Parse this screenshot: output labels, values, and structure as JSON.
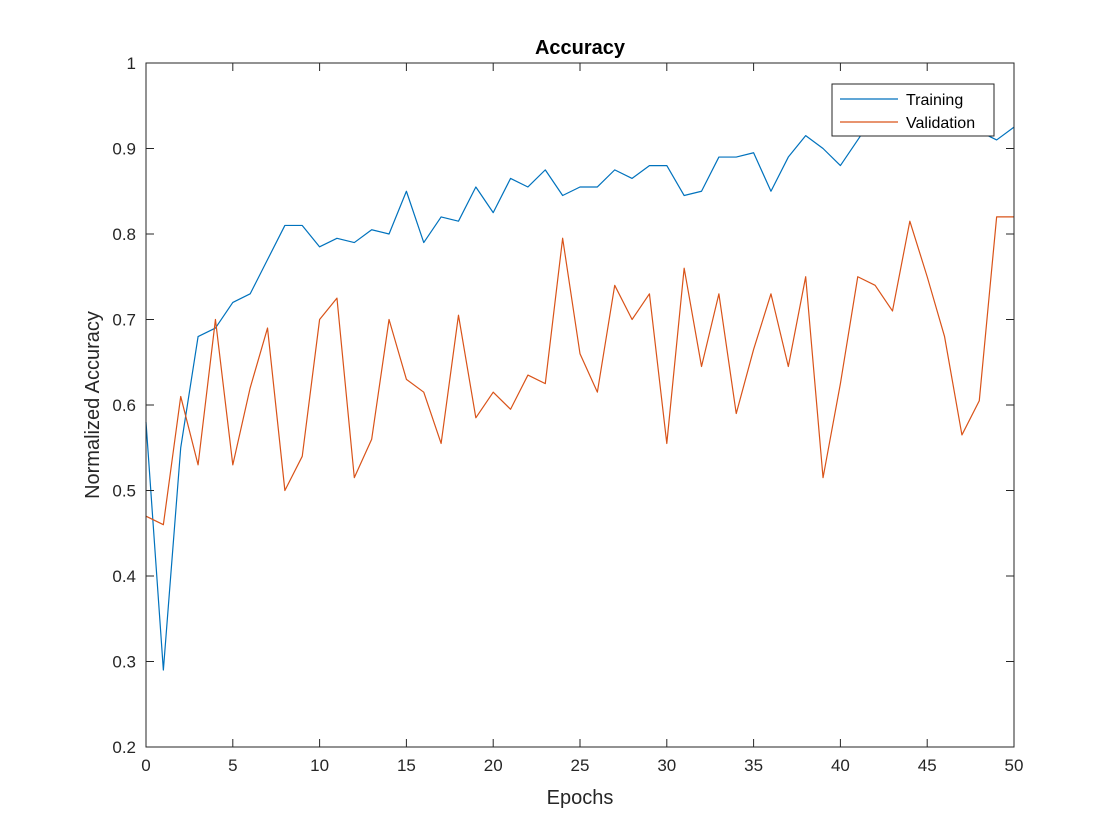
{
  "chart_data": {
    "type": "line",
    "title": "Accuracy",
    "xlabel": "Epochs",
    "ylabel": "Normalized Accuracy",
    "xlim": [
      0,
      50
    ],
    "ylim": [
      0.2,
      1
    ],
    "xticks": [
      0,
      5,
      10,
      15,
      20,
      25,
      30,
      35,
      40,
      45,
      50
    ],
    "yticks": [
      0.2,
      0.3,
      0.4,
      0.5,
      0.6,
      0.7,
      0.8,
      0.9,
      1
    ],
    "ytick_labels": [
      "0.2",
      "0.3",
      "0.4",
      "0.5",
      "0.6",
      "0.7",
      "0.8",
      "0.9",
      "1"
    ],
    "grid": false,
    "legend_position": "top-right",
    "x": [
      0,
      1,
      2,
      3,
      4,
      5,
      6,
      7,
      8,
      9,
      10,
      11,
      12,
      13,
      14,
      15,
      16,
      17,
      18,
      19,
      20,
      21,
      22,
      23,
      24,
      25,
      26,
      27,
      28,
      29,
      30,
      31,
      32,
      33,
      34,
      35,
      36,
      37,
      38,
      39,
      40,
      41,
      42,
      43,
      44,
      45,
      46,
      47,
      48,
      49,
      50
    ],
    "series": [
      {
        "name": "Training",
        "color": "#0072BD",
        "values": [
          0.58,
          0.29,
          0.55,
          0.68,
          0.69,
          0.72,
          0.73,
          0.77,
          0.81,
          0.81,
          0.785,
          0.795,
          0.79,
          0.805,
          0.8,
          0.85,
          0.79,
          0.82,
          0.815,
          0.855,
          0.825,
          0.865,
          0.855,
          0.875,
          0.845,
          0.855,
          0.855,
          0.875,
          0.865,
          0.88,
          0.88,
          0.845,
          0.85,
          0.89,
          0.89,
          0.895,
          0.85,
          0.89,
          0.915,
          0.9,
          0.88,
          0.91,
          0.94,
          0.95,
          0.955,
          0.965,
          0.96,
          0.94,
          0.92,
          0.91,
          0.925
        ]
      },
      {
        "name": "Validation",
        "color": "#D95319",
        "values": [
          0.47,
          0.46,
          0.61,
          0.53,
          0.7,
          0.53,
          0.62,
          0.69,
          0.5,
          0.54,
          0.7,
          0.725,
          0.515,
          0.56,
          0.7,
          0.63,
          0.615,
          0.555,
          0.705,
          0.585,
          0.615,
          0.595,
          0.635,
          0.625,
          0.795,
          0.66,
          0.615,
          0.74,
          0.7,
          0.73,
          0.555,
          0.76,
          0.645,
          0.73,
          0.59,
          0.665,
          0.73,
          0.645,
          0.75,
          0.515,
          0.625,
          0.75,
          0.74,
          0.71,
          0.815,
          0.75,
          0.68,
          0.565,
          0.605,
          0.82,
          0.82
        ]
      }
    ]
  }
}
